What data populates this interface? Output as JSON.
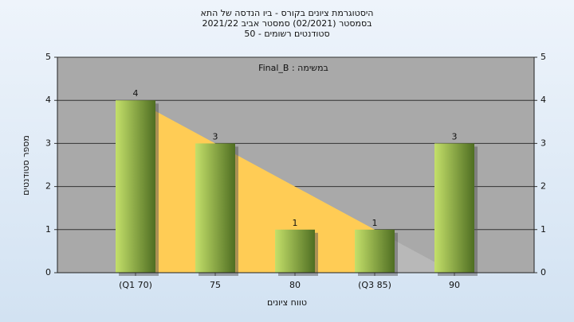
{
  "chart_data": {
    "type": "bar",
    "title": [
      "היסטוגרמת ציונים בקורס - ביו הנדסה של התא",
      "בסמסטר  (02/2021)  סמסטר אביב 2021/22",
      "סטודנטים רשומים - 50"
    ],
    "annotation": "Final_B : במשימה",
    "x_label": "טווח ציונים",
    "y_label": "מספר סטודנטים",
    "categories": [
      "(Q1 70)",
      "75",
      "80",
      "(Q3 85)",
      "90"
    ],
    "values": [
      4,
      3,
      1,
      1,
      3
    ],
    "color_light": "#c4e06a",
    "color_dark": "#4f6e22",
    "trend": {
      "values": [
        4,
        3,
        2,
        1,
        0
      ],
      "color": "#ffcc55",
      "tail_color": "#b8b8b8"
    },
    "ylim": [
      0,
      5
    ],
    "yticks": [
      0,
      1,
      2,
      3,
      4,
      5
    ],
    "grid": true
  }
}
